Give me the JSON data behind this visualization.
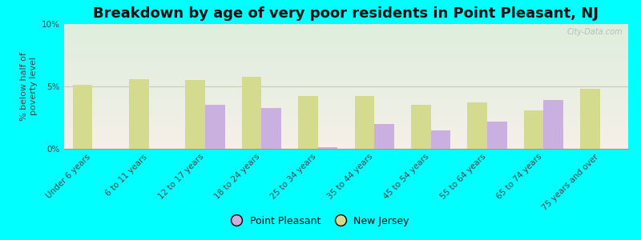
{
  "title": "Breakdown by age of very poor residents in Point Pleasant, NJ",
  "ylabel": "% below half of\npoverty level",
  "categories": [
    "Under 6 years",
    "6 to 11 years",
    "12 to 17 years",
    "18 to 24 years",
    "25 to 34 years",
    "35 to 44 years",
    "45 to 54 years",
    "55 to 64 years",
    "65 to 74 years",
    "75 years and over"
  ],
  "point_pleasant": [
    0.0,
    0.0,
    3.5,
    3.3,
    0.1,
    2.0,
    1.5,
    2.2,
    3.9,
    0.0
  ],
  "new_jersey": [
    5.1,
    5.6,
    5.5,
    5.8,
    4.2,
    4.2,
    3.5,
    3.7,
    3.1,
    4.8
  ],
  "pp_color": "#c9b0e0",
  "nj_color": "#d4db8e",
  "bg_color": "#00ffff",
  "grad_top": "#f5f0e8",
  "grad_bottom": "#deeedd",
  "ylim": [
    0,
    10
  ],
  "yticks": [
    0,
    5,
    10
  ],
  "ytick_labels": [
    "0%",
    "5%",
    "10%"
  ],
  "bar_width": 0.35,
  "legend_pp": "Point Pleasant",
  "legend_nj": "New Jersey",
  "title_fontsize": 13,
  "axis_label_fontsize": 8,
  "tick_fontsize": 7.5,
  "watermark": "City-Data.com"
}
